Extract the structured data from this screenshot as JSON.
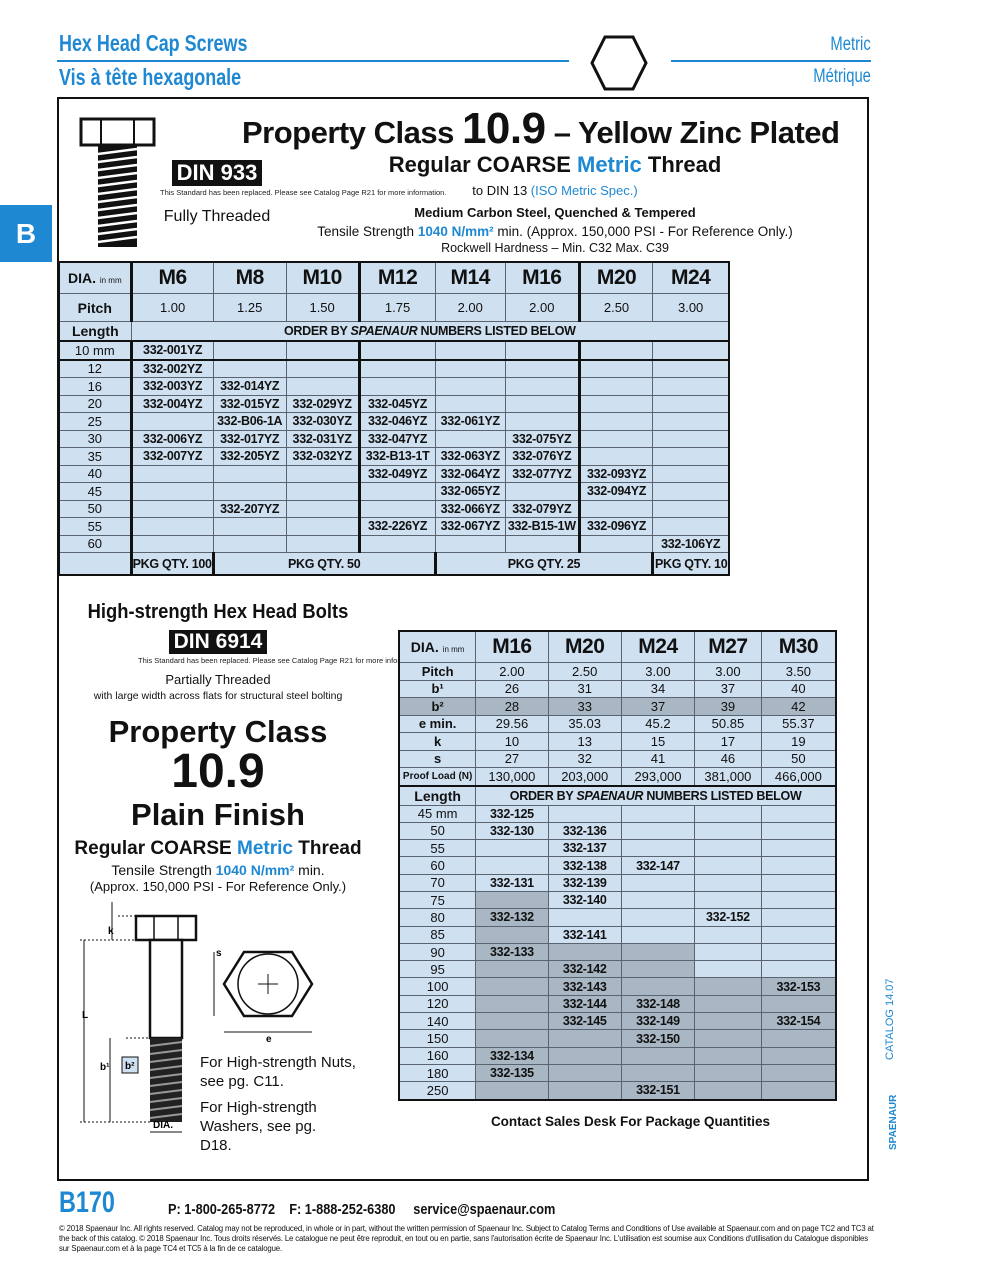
{
  "header": {
    "title_en": "Hex Head Cap Screws",
    "title_fr": "Vis à tête hexagonale",
    "right_en": "Metric",
    "right_fr": "Métrique",
    "section_tab": "B"
  },
  "section1": {
    "title_pre": "Property Class ",
    "title_num": "10.9",
    "title_post": " – Yellow Zinc Plated",
    "thread_pre": "Regular COARSE ",
    "thread_metric": "Metric",
    "thread_post": " Thread",
    "din_pre": "to DIN 13 ",
    "din_spec": "(ISO Metric Spec.)",
    "material": "Medium Carbon Steel, Quenched & Tempered",
    "tensile_pre": "Tensile Strength ",
    "tensile_val": "1040 N/mm²",
    "tensile_post": " min. (Approx. 150,000 PSI - For Reference Only.)",
    "rockwell": "Rockwell Hardness – Min. C32  Max. C39",
    "din_badge": "DIN 933",
    "din_note": "This Standard has been replaced. Please see Catalog Page R21 for more information.",
    "thread_type": "Fully Threaded"
  },
  "table1": {
    "dia_label": "DIA.",
    "dia_unit": "in mm",
    "pitch_label": "Pitch",
    "length_label": "Length",
    "order_pre": "ORDER BY ",
    "order_brand": "SPAENAUR",
    "order_post": " NUMBERS LISTED BELOW",
    "sizes": [
      "M6",
      "M8",
      "M10",
      "M12",
      "M14",
      "M16",
      "M20",
      "M24"
    ],
    "pitch": [
      "1.00",
      "1.25",
      "1.50",
      "1.75",
      "2.00",
      "2.00",
      "2.50",
      "3.00"
    ],
    "rows": [
      {
        "length": "10 mm",
        "parts": [
          "332-001YZ",
          "",
          "",
          "",
          "",
          "",
          "",
          ""
        ]
      },
      {
        "length": "12",
        "parts": [
          "332-002YZ",
          "",
          "",
          "",
          "",
          "",
          "",
          ""
        ]
      },
      {
        "length": "16",
        "parts": [
          "332-003YZ",
          "332-014YZ",
          "",
          "",
          "",
          "",
          "",
          ""
        ]
      },
      {
        "length": "20",
        "parts": [
          "332-004YZ",
          "332-015YZ",
          "332-029YZ",
          "332-045YZ",
          "",
          "",
          "",
          ""
        ]
      },
      {
        "length": "25",
        "parts": [
          "",
          "332-B06-1A",
          "332-030YZ",
          "332-046YZ",
          "332-061YZ",
          "",
          "",
          ""
        ]
      },
      {
        "length": "30",
        "parts": [
          "332-006YZ",
          "332-017YZ",
          "332-031YZ",
          "332-047YZ",
          "",
          "332-075YZ",
          "",
          ""
        ]
      },
      {
        "length": "35",
        "parts": [
          "332-007YZ",
          "332-205YZ",
          "332-032YZ",
          "332-B13-1T",
          "332-063YZ",
          "332-076YZ",
          "",
          ""
        ]
      },
      {
        "length": "40",
        "parts": [
          "",
          "",
          "",
          "332-049YZ",
          "332-064YZ",
          "332-077YZ",
          "332-093YZ",
          ""
        ]
      },
      {
        "length": "45",
        "parts": [
          "",
          "",
          "",
          "",
          "332-065YZ",
          "",
          "332-094YZ",
          ""
        ]
      },
      {
        "length": "50",
        "parts": [
          "",
          "332-207YZ",
          "",
          "",
          "332-066YZ",
          "332-079YZ",
          "",
          ""
        ]
      },
      {
        "length": "55",
        "parts": [
          "",
          "",
          "",
          "332-226YZ",
          "332-067YZ",
          "332-B15-1W",
          "332-096YZ",
          ""
        ]
      },
      {
        "length": "60",
        "parts": [
          "",
          "",
          "",
          "",
          "",
          "",
          "",
          "332-106YZ"
        ]
      }
    ],
    "pkg": [
      {
        "label": "PKG QTY. 100",
        "span": 1
      },
      {
        "label": "PKG QTY. 50",
        "span": 3
      },
      {
        "label": "PKG QTY. 25",
        "span": 3
      },
      {
        "label": "PKG QTY. 10",
        "span": 1
      }
    ]
  },
  "section2": {
    "title": "High-strength Hex Head Bolts",
    "din_badge": "DIN 6914",
    "din_note": "This Standard has been replaced. Please see Catalog Page R21 for more information.",
    "thread_type": "Partially Threaded",
    "note": "with large width across flats for structural steel bolting",
    "class_label": "Property Class",
    "class_num": "10.9",
    "finish": "Plain Finish",
    "thread_pre": "Regular COARSE ",
    "thread_metric": "Metric",
    "thread_post": " Thread",
    "tensile_pre": "Tensile Strength ",
    "tensile_val": "1040 N/mm²",
    "tensile_post": " min.",
    "tensile_note": "(Approx. 150,000 PSI - For Reference Only.)",
    "nuts_ref": "For High-strength Nuts, see pg. C11.",
    "washers_ref": "For High-strength Washers, see pg. D18.",
    "diagram_labels": {
      "k": "k",
      "L": "L",
      "b1": "b¹",
      "b2": "b²",
      "dia": "DIA.",
      "s": "s",
      "e": "e"
    },
    "contact": "Contact Sales Desk For Package Quantities"
  },
  "table2": {
    "dia_label": "DIA.",
    "dia_unit": "in mm",
    "length_label": "Length",
    "order_pre": "ORDER BY ",
    "order_brand": "SPAENAUR",
    "order_post": " NUMBERS LISTED BELOW",
    "sizes": [
      "M16",
      "M20",
      "M24",
      "M27",
      "M30"
    ],
    "specs": [
      {
        "label": "Pitch",
        "values": [
          "2.00",
          "2.50",
          "3.00",
          "3.00",
          "3.50"
        ]
      },
      {
        "label": "b¹",
        "values": [
          "26",
          "31",
          "34",
          "37",
          "40"
        ]
      },
      {
        "label": "b²",
        "values": [
          "28",
          "33",
          "37",
          "39",
          "42"
        ],
        "shaded": true
      },
      {
        "label": "e min.",
        "values": [
          "29.56",
          "35.03",
          "45.2",
          "50.85",
          "55.37"
        ]
      },
      {
        "label": "k",
        "values": [
          "10",
          "13",
          "15",
          "17",
          "19"
        ]
      },
      {
        "label": "s",
        "values": [
          "27",
          "32",
          "41",
          "46",
          "50"
        ]
      },
      {
        "label": "Proof Load (N)",
        "values": [
          "130,000",
          "203,000",
          "293,000",
          "381,000",
          "466,000"
        ]
      }
    ],
    "shaded_from_length": [
      75,
      90,
      90,
      100,
      100
    ],
    "rows": [
      {
        "length": "45 mm",
        "parts": [
          "332-125",
          "",
          "",
          "",
          ""
        ]
      },
      {
        "length": "50",
        "parts": [
          "332-130",
          "332-136",
          "",
          "",
          ""
        ]
      },
      {
        "length": "55",
        "parts": [
          "",
          "332-137",
          "",
          "",
          ""
        ]
      },
      {
        "length": "60",
        "parts": [
          "",
          "332-138",
          "332-147",
          "",
          ""
        ]
      },
      {
        "length": "70",
        "parts": [
          "332-131",
          "332-139",
          "",
          "",
          ""
        ]
      },
      {
        "length": "75",
        "parts": [
          "",
          "332-140",
          "",
          "",
          ""
        ]
      },
      {
        "length": "80",
        "parts": [
          "332-132",
          "",
          "",
          "332-152",
          ""
        ]
      },
      {
        "length": "85",
        "parts": [
          "",
          "332-141",
          "",
          "",
          ""
        ]
      },
      {
        "length": "90",
        "parts": [
          "332-133",
          "",
          "",
          "",
          ""
        ]
      },
      {
        "length": "95",
        "parts": [
          "",
          "332-142",
          "",
          "",
          ""
        ]
      },
      {
        "length": "100",
        "parts": [
          "",
          "332-143",
          "",
          "",
          "332-153"
        ]
      },
      {
        "length": "120",
        "parts": [
          "",
          "332-144",
          "332-148",
          "",
          ""
        ]
      },
      {
        "length": "140",
        "parts": [
          "",
          "332-145",
          "332-149",
          "",
          "332-154"
        ]
      },
      {
        "length": "150",
        "parts": [
          "",
          "",
          "332-150",
          "",
          ""
        ]
      },
      {
        "length": "160",
        "parts": [
          "332-134",
          "",
          "",
          "",
          ""
        ]
      },
      {
        "length": "180",
        "parts": [
          "332-135",
          "",
          "",
          "",
          ""
        ]
      },
      {
        "length": "250",
        "parts": [
          "",
          "",
          "332-151",
          "",
          ""
        ]
      }
    ]
  },
  "footer": {
    "page": "B170",
    "phone": "P: 1-800-265-8772",
    "fax": "F: 1-888-252-6380",
    "email": "service@spaenaur.com",
    "legal": "© 2018 Spaenaur Inc. All rights reserved. Catalog may not be reproduced, in whole or in part, without the written permission of Spaenaur Inc. Subject to Catalog Terms and Conditions of Use available at Spaenaur.com and on page TC2 and TC3 at the back of this catalog. © 2018 Spaenaur Inc. Tous droits réservés. Le catalogue ne peut être reproduit, en tout ou en partie, sans l'autorisation écrite de Spaenaur Inc. L'utilisation est soumise aux Conditions d'utilisation du Catalogue disponibles sur Spaenaur.com et à la page TC4 et TC5 à la fin de ce catalogue.",
    "catalog": "CATALOG 14.07",
    "brand": "SPAENAUR"
  },
  "colors": {
    "accent": "#1e88d2",
    "cell": "#cfe0f1",
    "shaded": "#a9b7c4"
  }
}
